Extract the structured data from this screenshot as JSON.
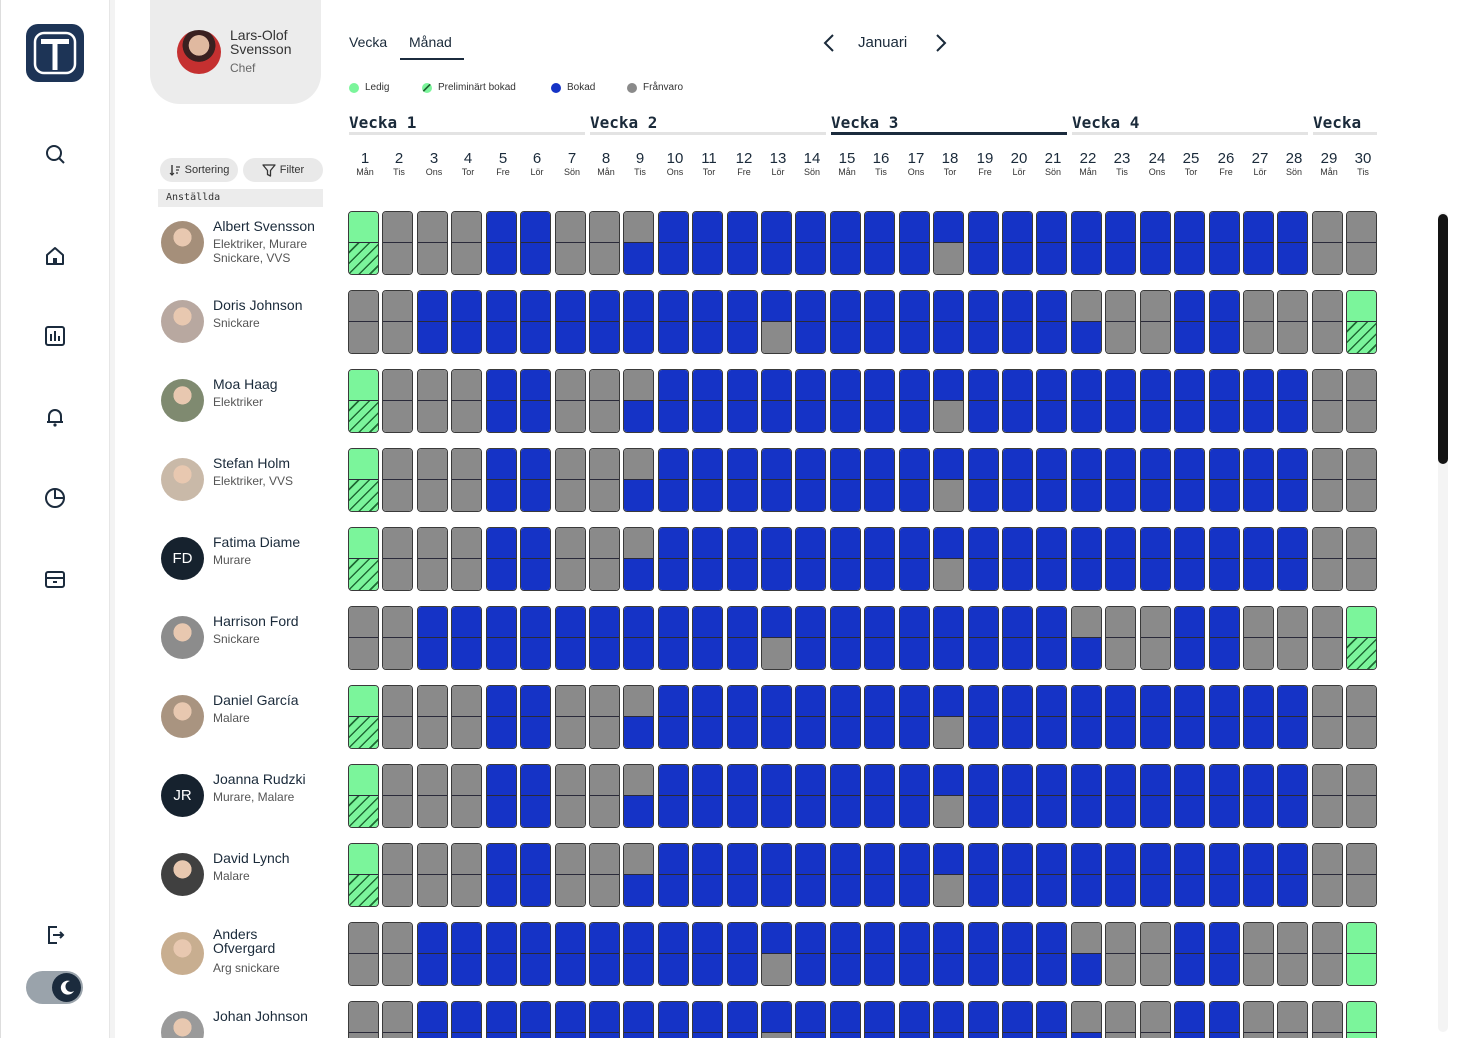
{
  "profile": {
    "name": "Lars-Olof Svensson",
    "role": "Chef"
  },
  "controls": {
    "sort_label": "Sortering",
    "filter_label": "Filter",
    "employees_label": "Anställda"
  },
  "tabs": [
    {
      "label": "Vecka",
      "active": false
    },
    {
      "label": "Månad",
      "active": true
    }
  ],
  "month": "Januari",
  "legend": [
    {
      "label": "Ledig",
      "color": "#7bf59b"
    },
    {
      "label": "Preliminärt bokad",
      "color": "#7bf59b",
      "pattern": "hatched"
    },
    {
      "label": "Bokad",
      "color": "#1533c6"
    },
    {
      "label": "Frånvaro",
      "color": "#8a8a8a"
    }
  ],
  "weeks": [
    {
      "label": "Vecka  1",
      "active": false
    },
    {
      "label": "Vecka  2",
      "active": false
    },
    {
      "label": "Vecka  3",
      "active": true
    },
    {
      "label": "Vecka  4",
      "active": false
    },
    {
      "label": "Vecka",
      "active": false
    }
  ],
  "days": [
    {
      "n": "1",
      "d": "Mån"
    },
    {
      "n": "2",
      "d": "Tis"
    },
    {
      "n": "3",
      "d": "Ons"
    },
    {
      "n": "4",
      "d": "Tor"
    },
    {
      "n": "5",
      "d": "Fre"
    },
    {
      "n": "6",
      "d": "Lör"
    },
    {
      "n": "7",
      "d": "Sön"
    },
    {
      "n": "8",
      "d": "Mån"
    },
    {
      "n": "9",
      "d": "Tis"
    },
    {
      "n": "10",
      "d": "Ons"
    },
    {
      "n": "11",
      "d": "Tor"
    },
    {
      "n": "12",
      "d": "Fre"
    },
    {
      "n": "13",
      "d": "Lör"
    },
    {
      "n": "14",
      "d": "Sön"
    },
    {
      "n": "15",
      "d": "Mån"
    },
    {
      "n": "16",
      "d": "Tis"
    },
    {
      "n": "17",
      "d": "Ons"
    },
    {
      "n": "18",
      "d": "Tor"
    },
    {
      "n": "19",
      "d": "Fre"
    },
    {
      "n": "20",
      "d": "Lör"
    },
    {
      "n": "21",
      "d": "Sön"
    },
    {
      "n": "22",
      "d": "Mån"
    },
    {
      "n": "23",
      "d": "Tis"
    },
    {
      "n": "24",
      "d": "Ons"
    },
    {
      "n": "25",
      "d": "Tor"
    },
    {
      "n": "26",
      "d": "Fre"
    },
    {
      "n": "27",
      "d": "Lör"
    },
    {
      "n": "28",
      "d": "Sön"
    },
    {
      "n": "29",
      "d": "Mån"
    },
    {
      "n": "30",
      "d": "Tis"
    }
  ],
  "status_legend_codes": {
    "f": "Ledig",
    "p": "Preliminärt bokad",
    "b": "Bokad",
    "g": "Frånvaro"
  },
  "employees": [
    {
      "name": "Albert Svensson",
      "skills": "Elektriker, Murare Snickare, VVS",
      "avatar": "photo",
      "pattern": "A"
    },
    {
      "name": "Doris Johnson",
      "skills": "Snickare",
      "avatar": "photo",
      "pattern": "B"
    },
    {
      "name": "Moa Haag",
      "skills": "Elektriker",
      "avatar": "photo",
      "pattern": "A"
    },
    {
      "name": "Stefan Holm",
      "skills": "Elektriker, VVS",
      "avatar": "photo",
      "pattern": "A"
    },
    {
      "name": "Fatima Diame",
      "skills": "Murare",
      "avatar": "initials",
      "initials": "FD",
      "pattern": "A"
    },
    {
      "name": "Harrison Ford",
      "skills": "Snickare",
      "avatar": "photo",
      "pattern": "B"
    },
    {
      "name": "Daniel García",
      "skills": "Malare",
      "avatar": "photo",
      "pattern": "A"
    },
    {
      "name": "Joanna Rudzki",
      "skills": "Murare, Malare",
      "avatar": "initials",
      "initials": "JR",
      "pattern": "A"
    },
    {
      "name": "David Lynch",
      "skills": "Malare",
      "avatar": "photo",
      "pattern": "A"
    },
    {
      "name": "Anders Ofvergard",
      "skills": "Arg snickare",
      "avatar": "photo",
      "pattern": "C"
    },
    {
      "name": "Johan Johnson",
      "skills": "",
      "avatar": "photo",
      "pattern": "C"
    }
  ],
  "schedule_patterns": {
    "A": [
      "fp",
      "gg",
      "gg",
      "gg",
      "bb",
      "bb",
      "gg",
      "gg",
      "gb",
      "bb",
      "bb",
      "bb",
      "bb",
      "bb",
      "bb",
      "bb",
      "bb",
      "bg",
      "bb",
      "bb",
      "bb",
      "bb",
      "bb",
      "bb",
      "bb",
      "bb",
      "bb",
      "bb",
      "gg",
      "gg"
    ],
    "B": [
      "gg",
      "gg",
      "bb",
      "bb",
      "bb",
      "bb",
      "bb",
      "bb",
      "bb",
      "bb",
      "bb",
      "bb",
      "bg",
      "bb",
      "bb",
      "bb",
      "bb",
      "bb",
      "bb",
      "bb",
      "bb",
      "gb",
      "gg",
      "gg",
      "bb",
      "bb",
      "gg",
      "gg",
      "gg",
      "fp"
    ],
    "C": [
      "gg",
      "gg",
      "bb",
      "bb",
      "bb",
      "bb",
      "bb",
      "bb",
      "bb",
      "bb",
      "bb",
      "bb",
      "bg",
      "bb",
      "bb",
      "bb",
      "bb",
      "bb",
      "bb",
      "bb",
      "bb",
      "gb",
      "gg",
      "gg",
      "bb",
      "bb",
      "gg",
      "gg",
      "gg",
      "ff"
    ]
  }
}
